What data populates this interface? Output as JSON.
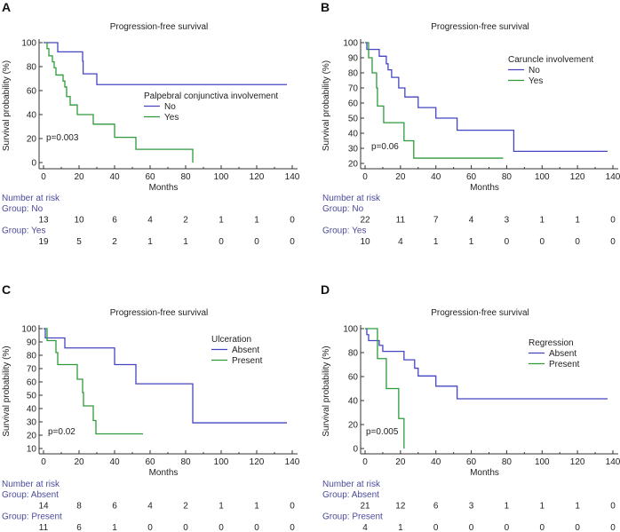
{
  "chart_data": [
    {
      "type": "line",
      "panel_label": "A",
      "title": "Progression-free survival",
      "xlabel": "Months",
      "ylabel": "Survival probability (%)",
      "xlim": [
        0,
        140
      ],
      "ylim": [
        0,
        100
      ],
      "xticks": [
        0,
        20,
        40,
        60,
        80,
        100,
        120,
        140
      ],
      "yticks": [
        0,
        20,
        40,
        60,
        80,
        100
      ],
      "legend_title": "Palpebral conjunctiva involvement",
      "p_value": "p=0.003",
      "series": [
        {
          "name": "No",
          "color": "#4545c2",
          "points": [
            [
              0,
              100
            ],
            [
              8,
              92.3
            ],
            [
              22,
              84.6
            ],
            [
              22.3,
              74
            ],
            [
              30,
              65
            ],
            [
              137,
              65
            ]
          ]
        },
        {
          "name": "Yes",
          "color": "#2e9a3a",
          "points": [
            [
              1,
              100
            ],
            [
              2,
              95
            ],
            [
              3,
              89
            ],
            [
              5,
              84
            ],
            [
              6,
              79
            ],
            [
              7,
              73
            ],
            [
              11,
              68
            ],
            [
              12,
              63
            ],
            [
              13,
              55
            ],
            [
              15,
              48
            ],
            [
              19,
              40
            ],
            [
              28,
              32
            ],
            [
              40,
              21
            ],
            [
              52,
              11
            ],
            [
              84,
              0
            ],
            [
              84,
              0
            ]
          ]
        }
      ],
      "risk_table": {
        "title": "Number at risk",
        "groups": [
          {
            "label": "Group: No",
            "values": [
              13,
              10,
              6,
              4,
              2,
              1,
              1,
              0
            ]
          },
          {
            "label": "Group: Yes",
            "values": [
              19,
              5,
              2,
              1,
              1,
              0,
              0,
              0
            ]
          }
        ]
      }
    },
    {
      "type": "line",
      "panel_label": "B",
      "title": "Progression-free survival",
      "xlabel": "Months",
      "ylabel": "Survival probability (%)",
      "xlim": [
        0,
        140
      ],
      "ylim": [
        20,
        100
      ],
      "xticks": [
        0,
        20,
        40,
        60,
        80,
        100,
        120,
        140
      ],
      "yticks": [
        20,
        30,
        40,
        50,
        60,
        70,
        80,
        90,
        100
      ],
      "legend_title": "Caruncle involvement",
      "p_value": "p=0.06",
      "series": [
        {
          "name": "No",
          "color": "#4545c2",
          "points": [
            [
              0,
              100
            ],
            [
              1,
              95.5
            ],
            [
              8,
              91
            ],
            [
              12,
              86
            ],
            [
              13,
              82
            ],
            [
              15,
              77
            ],
            [
              19,
              70
            ],
            [
              22.5,
              64
            ],
            [
              30,
              57
            ],
            [
              40,
              50
            ],
            [
              52,
              42
            ],
            [
              84,
              28
            ],
            [
              137,
              28
            ]
          ]
        },
        {
          "name": "Yes",
          "color": "#2e9a3a",
          "points": [
            [
              1,
              100
            ],
            [
              2,
              90
            ],
            [
              4,
              80
            ],
            [
              6.5,
              70
            ],
            [
              7,
              58
            ],
            [
              10.5,
              47
            ],
            [
              22,
              35
            ],
            [
              27.5,
              23.5
            ],
            [
              78,
              23.5
            ]
          ]
        }
      ],
      "risk_table": {
        "title": "Number at risk",
        "groups": [
          {
            "label": "Group: No",
            "values": [
              22,
              11,
              7,
              4,
              3,
              1,
              1,
              0
            ]
          },
          {
            "label": "Group: Yes",
            "values": [
              10,
              4,
              1,
              1,
              0,
              0,
              0,
              0
            ]
          }
        ]
      }
    },
    {
      "type": "line",
      "panel_label": "C",
      "title": "Progression-free survival",
      "xlabel": "Months",
      "ylabel": "Survival probability (%)",
      "xlim": [
        0,
        140
      ],
      "ylim": [
        10,
        100
      ],
      "xticks": [
        0,
        20,
        40,
        60,
        80,
        100,
        120,
        140
      ],
      "yticks": [
        10,
        20,
        30,
        40,
        50,
        60,
        70,
        80,
        90,
        100
      ],
      "legend_title": "Ulceration",
      "p_value": "p=0.02",
      "series": [
        {
          "name": "Absent",
          "color": "#4545c2",
          "points": [
            [
              0,
              100
            ],
            [
              1,
              93
            ],
            [
              12,
              85.5
            ],
            [
              40,
              73
            ],
            [
              52,
              58.6
            ],
            [
              84,
              29.3
            ],
            [
              137,
              29.3
            ]
          ]
        },
        {
          "name": "Present",
          "color": "#2e9a3a",
          "points": [
            [
              1,
              100
            ],
            [
              2,
              91
            ],
            [
              7,
              82
            ],
            [
              8,
              73
            ],
            [
              19,
              62
            ],
            [
              22,
              52
            ],
            [
              22.5,
              42
            ],
            [
              28,
              31
            ],
            [
              29.5,
              21
            ],
            [
              56,
              21
            ]
          ]
        }
      ],
      "risk_table": {
        "title": "Number at risk",
        "groups": [
          {
            "label": "Group: Absent",
            "values": [
              14,
              8,
              6,
              4,
              2,
              1,
              1,
              0
            ]
          },
          {
            "label": "Group: Present",
            "values": [
              11,
              6,
              1,
              0,
              0,
              0,
              0,
              0
            ]
          }
        ]
      }
    },
    {
      "type": "line",
      "panel_label": "D",
      "title": "Progression-free survival",
      "xlabel": "Months",
      "ylabel": "Survival probability (%)",
      "xlim": [
        0,
        140
      ],
      "ylim": [
        0,
        100
      ],
      "xticks": [
        0,
        20,
        40,
        60,
        80,
        100,
        120,
        140
      ],
      "yticks": [
        0,
        20,
        40,
        60,
        80,
        100
      ],
      "legend_title": "Regression",
      "p_value": "p=0.005",
      "series": [
        {
          "name": "Absent",
          "color": "#4545c2",
          "points": [
            [
              0,
              100
            ],
            [
              1,
              95
            ],
            [
              2,
              90
            ],
            [
              8,
              86
            ],
            [
              10,
              81
            ],
            [
              22,
              74
            ],
            [
              28,
              67
            ],
            [
              30,
              60.5
            ],
            [
              40,
              52
            ],
            [
              52,
              41.5
            ],
            [
              137,
              41.5
            ]
          ]
        },
        {
          "name": "Present",
          "color": "#2e9a3a",
          "points": [
            [
              0,
              100
            ],
            [
              7,
              75
            ],
            [
              12,
              50
            ],
            [
              19,
              25
            ],
            [
              22,
              0
            ],
            [
              22,
              0
            ]
          ]
        }
      ],
      "risk_table": {
        "title": "Number at risk",
        "groups": [
          {
            "label": "Group: Absent",
            "values": [
              21,
              12,
              6,
              3,
              1,
              1,
              1,
              0
            ]
          },
          {
            "label": "Group: Present",
            "values": [
              4,
              1,
              0,
              0,
              0,
              0,
              0,
              0
            ]
          }
        ]
      }
    }
  ]
}
